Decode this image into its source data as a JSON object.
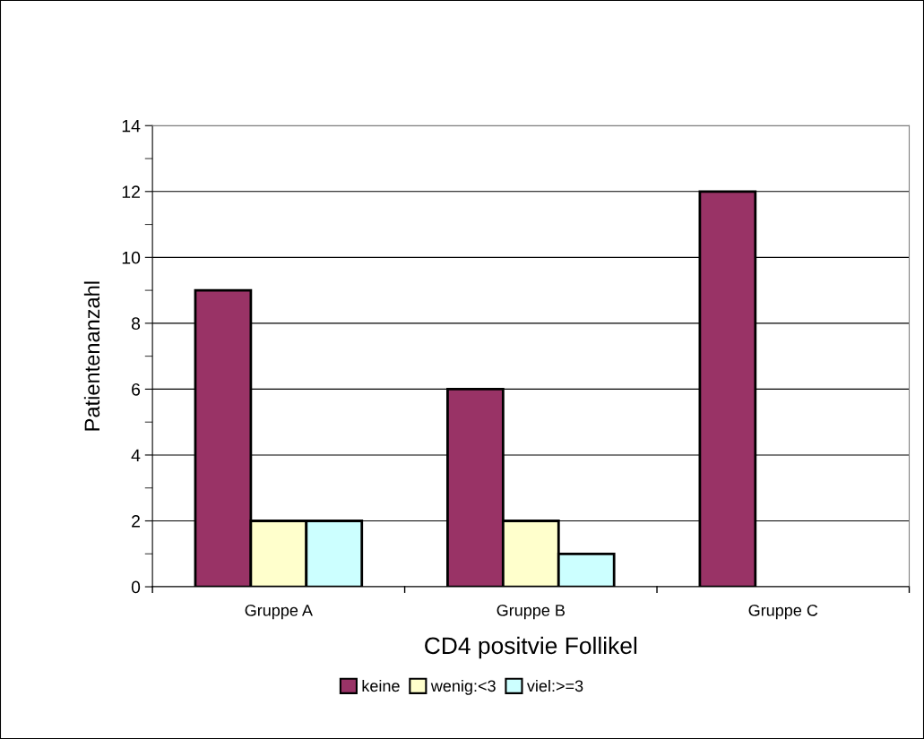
{
  "chart_data": {
    "type": "bar",
    "xlabel": "CD4 positvie Follikel",
    "ylabel": "Patientenanzahl",
    "categories": [
      "Gruppe A",
      "Gruppe B",
      "Gruppe C"
    ],
    "series": [
      {
        "name": "keine",
        "color": "#993366",
        "values": [
          9,
          6,
          12
        ]
      },
      {
        "name": "wenig:<3",
        "color": "#ffffcc",
        "values": [
          2,
          2,
          0
        ]
      },
      {
        "name": "viel:>=3",
        "color": "#ccffff",
        "values": [
          2,
          1,
          0
        ]
      }
    ],
    "ylim": [
      0,
      14
    ],
    "yticks": [
      0,
      2,
      4,
      6,
      8,
      10,
      12,
      14
    ],
    "grid": "y",
    "legend": "bottom"
  }
}
